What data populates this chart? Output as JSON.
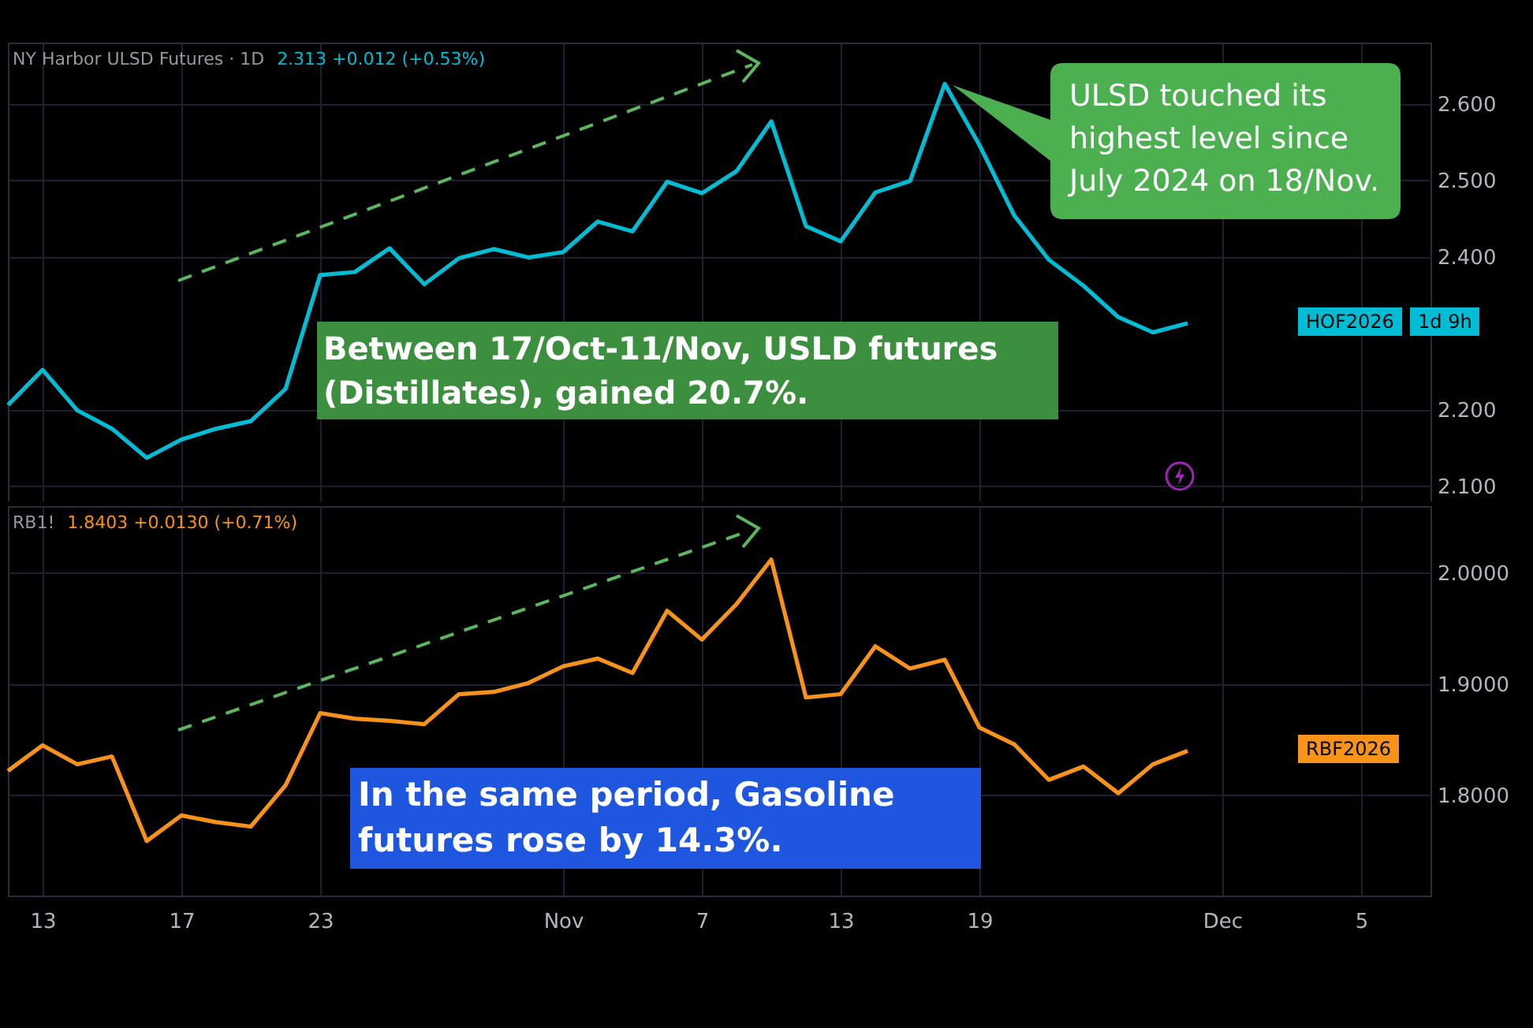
{
  "chart_data": [
    {
      "type": "line",
      "title": "NY Harbor ULSD Futures · 1D",
      "categories": [
        null,
        null,
        null,
        null,
        null,
        null,
        null,
        null,
        null,
        null,
        null,
        null,
        null,
        null,
        null,
        null,
        null,
        null,
        null,
        null,
        null,
        null,
        null,
        null,
        null,
        null,
        null,
        null,
        null,
        null,
        null,
        null,
        null,
        null,
        null,
        null,
        null,
        null,
        null,
        null,
        null,
        null
      ],
      "series": [
        {
          "name": "HOF2026",
          "color": "#00bcd4",
          "values": [
            2.206,
            2.252,
            2.199,
            2.175,
            2.137,
            2.161,
            2.175,
            2.185,
            2.227,
            2.376,
            2.38,
            2.411,
            2.364,
            2.398,
            2.41,
            2.399,
            2.406,
            2.446,
            2.433,
            2.498,
            2.483,
            2.512,
            2.577,
            2.44,
            2.42,
            2.484,
            2.499,
            2.626,
            2.546,
            2.454,
            2.396,
            2.362,
            2.321,
            2.301,
            2.313,
            null,
            null,
            null,
            null,
            null,
            null,
            null
          ]
        }
      ],
      "ylim": [
        2.08,
        2.68
      ],
      "yticks": [
        {
          "value": 2.1,
          "label": "2.100"
        },
        {
          "value": 2.2,
          "label": "2.200"
        },
        {
          "value": 2.4,
          "label": "2.400"
        },
        {
          "value": 2.5,
          "label": "2.500"
        },
        {
          "value": 2.6,
          "label": "2.600"
        }
      ],
      "grid": true,
      "tick_labels": "y",
      "annotations": [
        "2.313  +0.012 (+0.53%)",
        "1d 9h",
        "Between 17/Oct-11/Nov, USLD futures (Distillates), gained 20.7%.",
        "ULSD touched its highest level since July 2024 on 18/Nov."
      ]
    },
    {
      "type": "line",
      "title": "RB1!",
      "categories": [
        null,
        "13",
        null,
        null,
        null,
        "17",
        null,
        null,
        null,
        "23",
        null,
        null,
        null,
        null,
        null,
        null,
        "Nov",
        null,
        null,
        null,
        "7",
        null,
        null,
        null,
        "13",
        null,
        null,
        null,
        "19",
        null,
        null,
        null,
        null,
        null,
        null,
        "Dec",
        null,
        null,
        null,
        "5",
        null,
        null
      ],
      "series": [
        {
          "name": "RBF2026",
          "color": "#f7931a",
          "values": [
            1.822,
            1.845,
            1.828,
            1.835,
            1.759,
            1.782,
            1.776,
            1.772,
            1.809,
            1.874,
            1.869,
            1.867,
            1.864,
            1.891,
            1.893,
            1.901,
            1.916,
            1.923,
            1.91,
            1.966,
            1.94,
            1.972,
            2.012,
            1.888,
            1.891,
            1.934,
            1.914,
            1.922,
            1.861,
            1.846,
            1.814,
            1.826,
            1.802,
            1.828,
            1.84,
            null,
            null,
            null,
            null,
            null,
            null,
            null
          ]
        }
      ],
      "ylim": [
        1.71,
        2.06
      ],
      "yticks": [
        {
          "value": 1.8,
          "label": "1.8000"
        },
        {
          "value": 1.9,
          "label": "1.9000"
        },
        {
          "value": 2.0,
          "label": "2.0000"
        }
      ],
      "grid": true,
      "annotations": [
        "1.8403  +0.0130 (+0.71%)",
        "In the same period, Gasoline futures rose by 14.3%."
      ]
    }
  ]
}
